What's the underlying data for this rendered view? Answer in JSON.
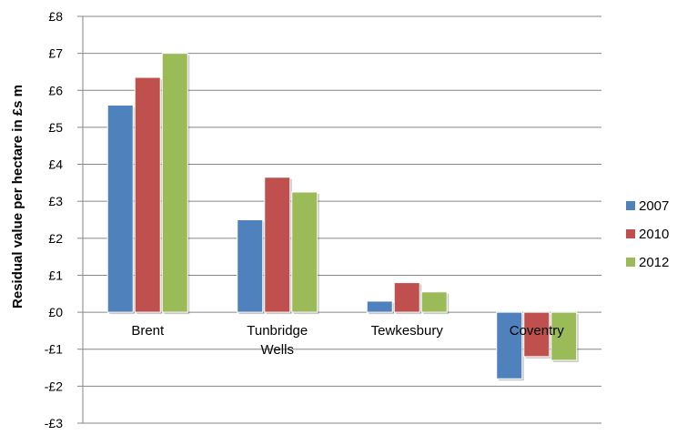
{
  "chart_data": {
    "type": "bar",
    "title": "",
    "xlabel": "",
    "ylabel": "Residual value per hectare in £s m",
    "categories": [
      [
        "Brent"
      ],
      [
        "Tunbridge",
        "Wells"
      ],
      [
        "Tewkesbury"
      ],
      [
        "Coventry"
      ]
    ],
    "series": [
      {
        "name": "2007",
        "color": "#4f81bd",
        "values": [
          5.6,
          2.5,
          0.3,
          -1.8
        ]
      },
      {
        "name": "2010",
        "color": "#c0504d",
        "values": [
          6.35,
          3.65,
          0.8,
          -1.2
        ]
      },
      {
        "name": "2012",
        "color": "#9bbb59",
        "values": [
          7.0,
          3.25,
          0.55,
          -1.3
        ]
      }
    ],
    "ylim": [
      -3,
      8
    ],
    "yticks": [
      8,
      7,
      6,
      5,
      4,
      3,
      2,
      1,
      0,
      -1,
      -2,
      -3
    ],
    "ytick_labels": [
      "£8",
      "£7",
      "£6",
      "£5",
      "£4",
      "£3",
      "£2",
      "£1",
      "£0",
      "-£1",
      "-£2",
      "-£3"
    ],
    "grid": true,
    "legend_position": "right"
  }
}
